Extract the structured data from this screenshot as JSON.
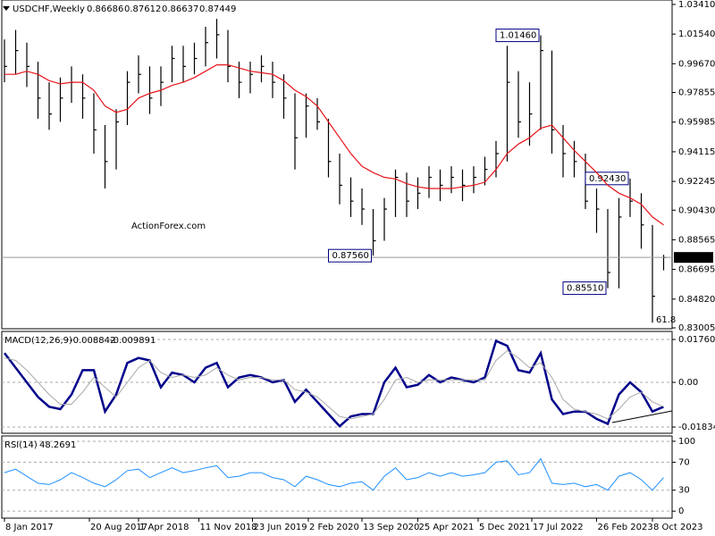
{
  "chart_data": [
    {
      "type": "ohlc",
      "title": "USDCHF,Weekly",
      "header_values": [
        0.86686,
        0.87612,
        0.86637,
        0.87449
      ],
      "watermark": "ActionForex.com",
      "high": [
        1.012,
        1.018,
        1.01,
        0.998,
        0.985,
        0.988,
        0.995,
        0.99,
        0.978,
        0.958,
        0.968,
        0.992,
        1.002,
        0.995,
        0.995,
        1.008,
        1.008,
        1.01,
        1.02,
        1.025,
        1.018,
        0.998,
        0.998,
        1.002,
        0.998,
        0.99,
        0.978,
        0.978,
        0.975,
        0.962,
        0.94,
        0.925,
        0.918,
        0.905,
        0.912,
        0.93,
        0.928,
        0.925,
        0.932,
        0.93,
        0.932,
        0.93,
        0.932,
        0.938,
        0.948,
        1.008,
        0.992,
        0.985,
        1.0146,
        1.005,
        0.958,
        0.948,
        0.94,
        0.918,
        0.905,
        0.912,
        0.9243,
        0.915,
        0.895,
        0.87612
      ],
      "low": [
        0.985,
        0.99,
        0.982,
        0.962,
        0.955,
        0.96,
        0.972,
        0.962,
        0.94,
        0.918,
        0.93,
        0.958,
        0.978,
        0.965,
        0.97,
        0.985,
        0.985,
        0.99,
        0.995,
        1.0,
        0.985,
        0.975,
        0.978,
        0.985,
        0.975,
        0.962,
        0.93,
        0.95,
        0.955,
        0.925,
        0.908,
        0.9,
        0.895,
        0.8756,
        0.885,
        0.9,
        0.9,
        0.905,
        0.912,
        0.91,
        0.915,
        0.91,
        0.915,
        0.92,
        0.925,
        0.935,
        0.95,
        0.945,
        0.955,
        0.94,
        0.925,
        0.925,
        0.905,
        0.89,
        0.8551,
        0.855,
        0.9,
        0.88,
        0.8333,
        0.86637
      ],
      "close": [
        0.995,
        1.005,
        0.995,
        0.975,
        0.965,
        0.975,
        0.985,
        0.975,
        0.955,
        0.935,
        0.96,
        0.985,
        0.99,
        0.975,
        0.985,
        1.0,
        0.995,
        1.0,
        1.01,
        1.015,
        0.995,
        0.985,
        0.99,
        0.995,
        0.985,
        0.975,
        0.95,
        0.97,
        0.96,
        0.935,
        0.92,
        0.91,
        0.905,
        0.885,
        0.905,
        0.925,
        0.91,
        0.915,
        0.925,
        0.92,
        0.925,
        0.92,
        0.925,
        0.93,
        0.94,
        0.985,
        0.96,
        0.965,
        1.005,
        0.955,
        0.94,
        0.935,
        0.91,
        0.905,
        0.865,
        0.9,
        0.91,
        0.895,
        0.85,
        0.87449
      ],
      "bar_color": "#000000",
      "series": [
        {
          "color": "#e8141b",
          "values": [
            0.99,
            0.99,
            0.992,
            0.99,
            0.986,
            0.984,
            0.985,
            0.985,
            0.98,
            0.97,
            0.966,
            0.968,
            0.975,
            0.978,
            0.98,
            0.983,
            0.985,
            0.988,
            0.992,
            0.996,
            0.996,
            0.994,
            0.992,
            0.991,
            0.99,
            0.986,
            0.98,
            0.976,
            0.97,
            0.96,
            0.95,
            0.94,
            0.932,
            0.928,
            0.925,
            0.924,
            0.921,
            0.919,
            0.918,
            0.918,
            0.918,
            0.919,
            0.92,
            0.922,
            0.93,
            0.94,
            0.946,
            0.95,
            0.956,
            0.958,
            0.95,
            0.942,
            0.935,
            0.928,
            0.92,
            0.915,
            0.912,
            0.908,
            0.9,
            0.895
          ]
        }
      ],
      "annotations": [
        {
          "label": "1.01460",
          "value": 1.0146,
          "x": 48
        },
        {
          "label": "0.92430",
          "value": 0.9243,
          "x": 56
        },
        {
          "label": "0.87560",
          "value": 0.8756,
          "x": 33
        },
        {
          "label": "0.85510",
          "value": 0.8551,
          "x": 54
        }
      ],
      "last_price": 0.87449,
      "fib_label": 61.8,
      "xlim": [
        -0.24,
        59.76
      ],
      "xticks": [
        {
          "value": 0,
          "label": "8 Jan 2017"
        },
        {
          "value": 7.6,
          "label": "20 Aug 2017"
        },
        {
          "value": 12,
          "label": "1 Apr 2018"
        },
        {
          "value": 17.4,
          "label": "11 Nov 2018"
        },
        {
          "value": 22.2,
          "label": "23 Jun 2019"
        },
        {
          "value": 27.2,
          "label": "2 Feb 2020"
        },
        {
          "value": 32,
          "label": "13 Sep 2020"
        },
        {
          "value": 37,
          "label": "25 Apr 2021"
        },
        {
          "value": 42.4,
          "label": "5 Dec 2021"
        },
        {
          "value": 47.2,
          "label": "17 Jul 2022"
        },
        {
          "value": 53,
          "label": "26 Feb 2023"
        },
        {
          "value": 58,
          "label": "8 Oct 2023"
        }
      ],
      "ylim": [
        0.8295,
        1.0369
      ],
      "yticks": [
        {
          "value": 1.0341,
          "label": "1.03410"
        },
        {
          "value": 1.0154,
          "label": "1.01540"
        },
        {
          "value": 0.9967,
          "label": "0.99670"
        },
        0.97855,
        0.95985,
        0.94115,
        0.92245,
        {
          "value": 0.9043,
          "label": "0.90430"
        },
        0.88565,
        0.86695,
        {
          "value": 0.8482,
          "label": "0.84820"
        },
        0.83005
      ],
      "grid": false
    },
    {
      "type": "line",
      "title": "MACD(12,26,9)",
      "header_values": [
        -0.008842,
        -0.009891
      ],
      "series": [
        {
          "color": "#00008b",
          "width": 2.5,
          "values": [
            0.012,
            0.006,
            0.0,
            -0.006,
            -0.01,
            -0.011,
            -0.005,
            0.005,
            0.005,
            -0.012,
            -0.005,
            0.008,
            0.01,
            0.009,
            -0.002,
            0.004,
            0.003,
            0.0,
            0.006,
            0.008,
            -0.002,
            0.002,
            0.003,
            0.002,
            0.0,
            0.001,
            -0.008,
            -0.003,
            -0.008,
            -0.013,
            -0.018,
            -0.014,
            -0.013,
            -0.013,
            0.0,
            0.006,
            -0.002,
            -0.001,
            0.003,
            0.0,
            0.002,
            0.001,
            0.0,
            0.002,
            0.017,
            0.015,
            0.005,
            0.004,
            0.012,
            -0.007,
            -0.013,
            -0.012,
            -0.012,
            -0.015,
            -0.017,
            -0.005,
            0.0,
            -0.004,
            -0.012,
            -0.01
          ]
        },
        {
          "color": "#a9a9a9",
          "width": 1,
          "values": [
            0.01,
            0.009,
            0.005,
            0.0,
            -0.005,
            -0.009,
            -0.009,
            -0.004,
            0.002,
            -0.002,
            -0.006,
            0.0,
            0.006,
            0.009,
            0.004,
            0.002,
            0.003,
            0.002,
            0.003,
            0.006,
            0.003,
            0.001,
            0.002,
            0.002,
            0.001,
            0.001,
            -0.003,
            -0.004,
            -0.006,
            -0.01,
            -0.014,
            -0.015,
            -0.014,
            -0.013,
            -0.007,
            0.001,
            0.002,
            0.0,
            0.001,
            0.001,
            0.001,
            0.001,
            0.001,
            0.001,
            0.009,
            0.013,
            0.01,
            0.006,
            0.008,
            0.002,
            -0.007,
            -0.011,
            -0.012,
            -0.013,
            -0.015,
            -0.011,
            -0.006,
            -0.004,
            -0.008,
            -0.01
          ]
        }
      ],
      "xlim": [
        -0.24,
        59.76
      ],
      "ylim": [
        -0.0209,
        0.0209
      ],
      "yticks": [
        0.017603,
        {
          "value": 0,
          "label": "0.00"
        },
        -0.01834
      ],
      "grid": true
    },
    {
      "type": "line",
      "title": "RSI(14)",
      "header_values": [
        48.2691
      ],
      "series": [
        {
          "color": "#1e90ff",
          "width": 1,
          "values": [
            55,
            60,
            50,
            40,
            38,
            45,
            55,
            48,
            40,
            35,
            45,
            58,
            60,
            48,
            55,
            62,
            55,
            58,
            62,
            65,
            48,
            50,
            55,
            55,
            48,
            45,
            35,
            50,
            45,
            38,
            35,
            40,
            42,
            30,
            50,
            62,
            45,
            48,
            55,
            50,
            55,
            50,
            52,
            55,
            70,
            72,
            52,
            55,
            75,
            40,
            38,
            40,
            35,
            38,
            30,
            50,
            55,
            45,
            30,
            48
          ]
        }
      ],
      "xlim": [
        -0.24,
        59.76
      ],
      "ylim": [
        -10,
        107.6
      ],
      "yticks": [
        100,
        70,
        30,
        0
      ],
      "grid": true
    }
  ]
}
